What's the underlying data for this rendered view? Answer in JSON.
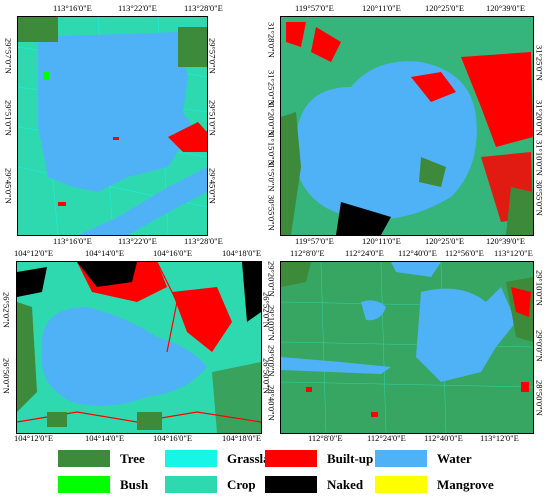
{
  "panels": [
    {
      "x_ticks": [
        "113°16'0\"E",
        "113°22'0\"E",
        "113°28'0\"E"
      ],
      "y_ticks": [
        "29°57'0\"N",
        "29°51'0\"N",
        "29°45'0\"N"
      ]
    },
    {
      "x_ticks": [
        "119°57'0\"E",
        "120°11'0\"E",
        "120°25'0\"E",
        "120°39'0\"E"
      ],
      "y_ticks": [
        "31°28'0\"N",
        "31°25'0\"N",
        "31°20'0\"N",
        "31°15'0\"N",
        "31°10'0\"N",
        "31°5'0\"N",
        "30°55'0\"N"
      ]
    },
    {
      "x_ticks": [
        "104°12'0\"E",
        "104°14'0\"E",
        "104°16'0\"E",
        "104°18'0\"E"
      ],
      "y_ticks": [
        "26°52'0\"N",
        "26°50'0\"N"
      ]
    },
    {
      "x_ticks": [
        "112°8'0\"E",
        "112°24'0\"E",
        "112°40'0\"E",
        "112°56'0\"E",
        "113°12'0\"E"
      ],
      "y_ticks": [
        "29°20'0\"N",
        "29°10'0\"N",
        "29°0'0\"N",
        "28°50'0\"N",
        "28°40'0\"N"
      ]
    }
  ],
  "legend": [
    {
      "label": "Tree",
      "color": "#3d8a3a"
    },
    {
      "label": "Grassland",
      "color": "#16f5e6"
    },
    {
      "label": "Built-up",
      "color": "#ff0000"
    },
    {
      "label": "Water",
      "color": "#4fb2f7"
    },
    {
      "label": "Bush",
      "color": "#00ff00"
    },
    {
      "label": "Crop",
      "color": "#2fd9b0"
    },
    {
      "label": "Naked",
      "color": "#000000"
    },
    {
      "label": "Mangrove",
      "color": "#ffff00"
    }
  ]
}
